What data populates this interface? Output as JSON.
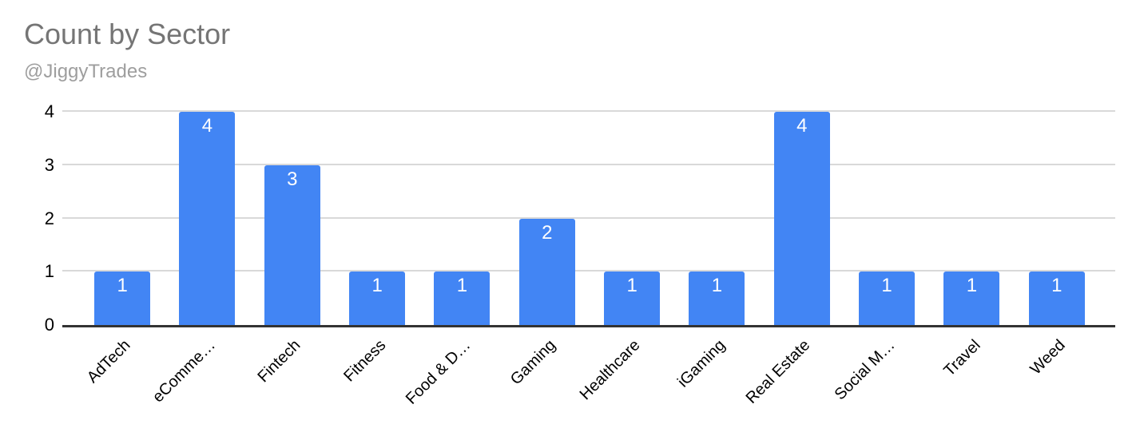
{
  "header": {
    "title": "Count by Sector",
    "subtitle": "@JiggyTrades"
  },
  "chart_data": {
    "type": "bar",
    "title": "Count by Sector",
    "subtitle": "@JiggyTrades",
    "categories": [
      "AdTech",
      "eComme…",
      "Fintech",
      "Fitness",
      "Food & D…",
      "Gaming",
      "Healthcare",
      "iGaming",
      "Real Estate",
      "Social M…",
      "Travel",
      "Weed"
    ],
    "values": [
      1,
      4,
      3,
      1,
      1,
      2,
      1,
      1,
      4,
      1,
      1,
      1
    ],
    "xlabel": "",
    "ylabel": "",
    "ylim": [
      0,
      4
    ],
    "yticks": [
      0,
      1,
      2,
      3,
      4
    ],
    "grid": true,
    "legend_position": "none",
    "bar_color": "#4285f4",
    "bar_label_color": "#ffffff",
    "gridline_color": "#d9d9d9",
    "axis_line_color": "#333333",
    "title_color": "#757575",
    "subtitle_color": "#9e9e9e",
    "tick_label_color": "#000000"
  }
}
